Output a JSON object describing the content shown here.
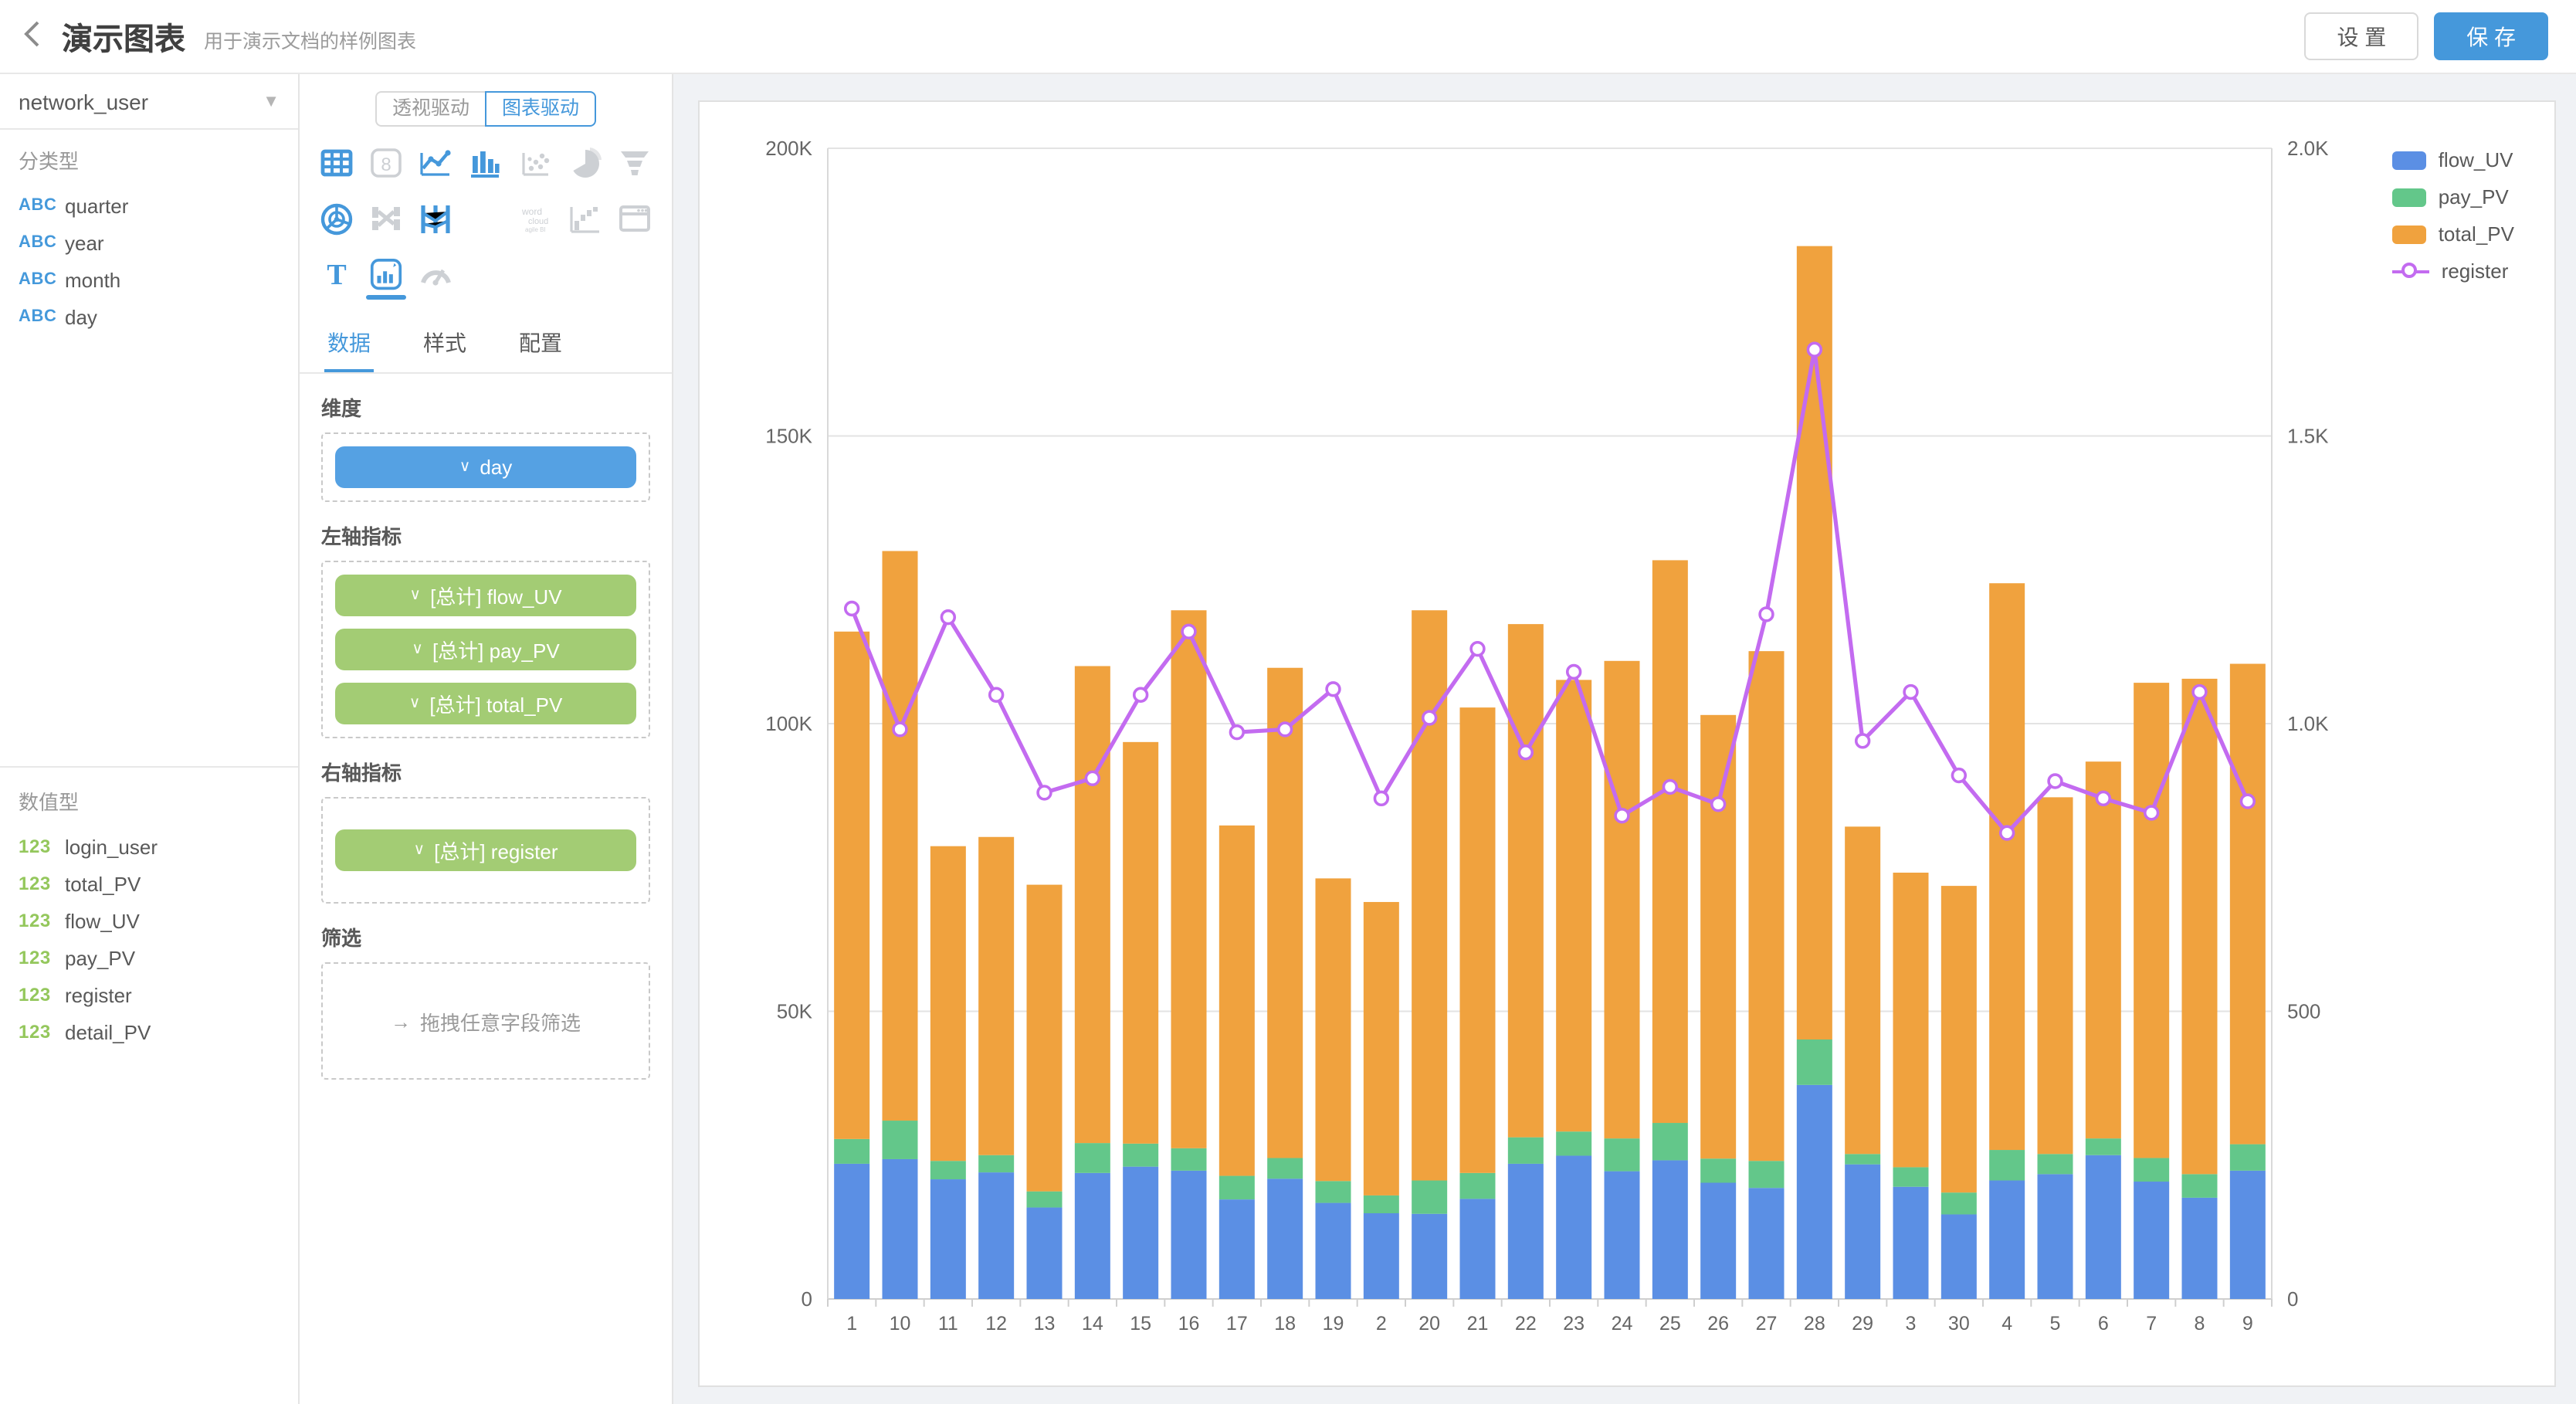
{
  "header": {
    "title": "演示图表",
    "subtitle": "用于演示文档的样例图表",
    "settings_label": "设 置",
    "save_label": "保 存"
  },
  "sidebar": {
    "source_selector": {
      "value": "network_user"
    },
    "category_section": {
      "title": "分类型",
      "badge": "ABC",
      "items": [
        "quarter",
        "year",
        "month",
        "day"
      ]
    },
    "numeric_section": {
      "title": "数值型",
      "badge": "123",
      "items": [
        "login_user",
        "total_PV",
        "flow_UV",
        "pay_PV",
        "register",
        "detail_PV"
      ]
    }
  },
  "panel": {
    "mode_toggle": {
      "options": [
        "透视驱动",
        "图表驱动"
      ],
      "selected": "图表驱动"
    },
    "chart_types": [
      {
        "name": "table",
        "state": "active"
      },
      {
        "name": "score-card",
        "state": "disabled"
      },
      {
        "name": "line-chart",
        "state": "active"
      },
      {
        "name": "bar-chart",
        "state": "active"
      },
      {
        "name": "scatter-chart",
        "state": "disabled"
      },
      {
        "name": "pie-chart",
        "state": "disabled"
      },
      {
        "name": "funnel-chart",
        "state": "disabled"
      },
      {
        "name": "radar-chart",
        "state": "active"
      },
      {
        "name": "sankey-chart",
        "state": "disabled"
      },
      {
        "name": "parallel-chart",
        "state": "active"
      },
      {
        "name": "map-chart",
        "state": "disabled"
      },
      {
        "name": "wordcloud-chart",
        "state": "disabled"
      },
      {
        "name": "waterfall-chart",
        "state": "disabled"
      },
      {
        "name": "iframe-chart",
        "state": "disabled"
      },
      {
        "name": "rich-text",
        "state": "active"
      },
      {
        "name": "dual-axis-chart",
        "state": "selected"
      },
      {
        "name": "gauge-chart",
        "state": "disabled"
      }
    ],
    "tabs": {
      "items": [
        "数据",
        "样式",
        "配置"
      ],
      "selected": "数据"
    },
    "sections": {
      "dimension": {
        "label": "维度",
        "chips": [
          {
            "text": "day",
            "color": "blue"
          }
        ]
      },
      "left_axis": {
        "label": "左轴指标",
        "chips": [
          {
            "text": "[总计] flow_UV",
            "color": "green"
          },
          {
            "text": "[总计] pay_PV",
            "color": "green"
          },
          {
            "text": "[总计] total_PV",
            "color": "green"
          }
        ]
      },
      "right_axis": {
        "label": "右轴指标",
        "chips": [
          {
            "text": "[总计] register",
            "color": "green"
          }
        ]
      },
      "filter": {
        "label": "筛选",
        "arrow": "→",
        "placeholder": "拖拽任意字段筛选"
      }
    }
  },
  "chart_data": {
    "type": "dual-axis bar+line",
    "categories": [
      "1",
      "10",
      "11",
      "12",
      "13",
      "14",
      "15",
      "16",
      "17",
      "18",
      "19",
      "2",
      "20",
      "21",
      "22",
      "23",
      "24",
      "25",
      "26",
      "27",
      "28",
      "29",
      "3",
      "30",
      "4",
      "5",
      "6",
      "7",
      "8",
      "9"
    ],
    "series": [
      {
        "name": "flow_UV",
        "type": "bar",
        "stack": true,
        "axis": "left",
        "color": "#5b8fe4",
        "values": [
          23500,
          24300,
          20800,
          22000,
          15900,
          21900,
          23000,
          22300,
          17300,
          20900,
          16700,
          14900,
          14800,
          17400,
          23500,
          24900,
          22200,
          24100,
          20200,
          19300,
          37200,
          23400,
          19500,
          14700,
          20600,
          21700,
          25000,
          20400,
          17600,
          22300
        ]
      },
      {
        "name": "pay_PV",
        "type": "bar",
        "stack": true,
        "axis": "left",
        "color": "#63c78a",
        "values": [
          4300,
          6700,
          3200,
          3000,
          2800,
          5200,
          4000,
          3900,
          4100,
          3600,
          3800,
          3100,
          5800,
          4500,
          4600,
          4200,
          5700,
          6500,
          4200,
          4700,
          7900,
          1800,
          3400,
          3800,
          5300,
          3500,
          2900,
          4100,
          4100,
          4600
        ]
      },
      {
        "name": "total_PV",
        "type": "bar",
        "stack": true,
        "axis": "left",
        "color": "#f0a23e",
        "values": [
          88200,
          99000,
          54700,
          55300,
          53300,
          82900,
          69800,
          93500,
          60900,
          85200,
          52600,
          51000,
          99100,
          80900,
          89200,
          78500,
          83000,
          97800,
          77100,
          88600,
          137900,
          56900,
          51200,
          53300,
          98500,
          62000,
          65500,
          82600,
          86100,
          83500
        ]
      },
      {
        "name": "register",
        "type": "line",
        "axis": "right",
        "color": "#c36bf0",
        "values": [
          1200,
          990,
          1185,
          1050,
          880,
          905,
          1050,
          1160,
          985,
          990,
          1060,
          870,
          1010,
          1130,
          950,
          1090,
          840,
          890,
          860,
          1190,
          1650,
          970,
          1055,
          910,
          810,
          900,
          870,
          845,
          1055,
          865
        ]
      }
    ],
    "left_axis": {
      "max": 200000,
      "ticks": [
        "0",
        "50K",
        "100K",
        "150K",
        "200K"
      ]
    },
    "right_axis": {
      "max": 2000,
      "ticks": [
        "0",
        "500",
        "1.0K",
        "1.5K",
        "2.0K"
      ]
    },
    "grid": true,
    "legend_position": "top-right"
  }
}
